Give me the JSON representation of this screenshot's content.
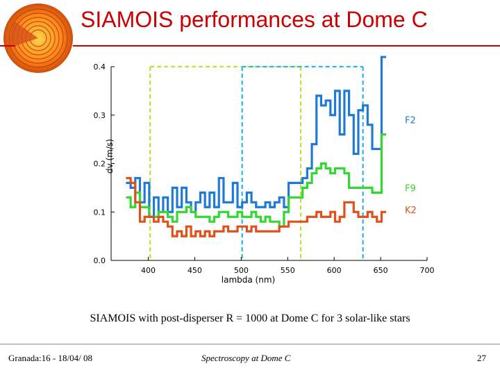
{
  "slide": {
    "title": "SIAMOIS performances at Dome C",
    "caption": "SIAMOIS with post-disperser R = 1000 at Dome C for 3 solar-like stars",
    "footer_left": "Granada:16 - 18/04/ 08",
    "footer_center": "Spectroscopy at Dome C",
    "page_number": "27",
    "logo_icon": "sun-interior-icon"
  },
  "chart_data": {
    "type": "line",
    "xlabel": "lambda (nm)",
    "ylabel": "dv (m/s)",
    "xlim": [
      360,
      700
    ],
    "ylim": [
      0.0,
      0.4
    ],
    "xticks": [
      "400",
      "450",
      "500",
      "550",
      "600",
      "650",
      "700"
    ],
    "yticks": [
      "0.0",
      "0.1",
      "0.2",
      "0.3",
      "0.4"
    ],
    "step": true,
    "series": [
      {
        "name": "F2",
        "color": "#1f7ad6",
        "x": [
          376,
          381,
          386,
          391,
          396,
          401,
          406,
          411,
          416,
          421,
          426,
          431,
          436,
          441,
          446,
          451,
          456,
          461,
          466,
          471,
          476,
          481,
          486,
          491,
          496,
          501,
          506,
          511,
          516,
          521,
          526,
          531,
          536,
          541,
          546,
          551,
          556,
          561,
          566,
          571,
          576,
          581,
          586,
          591,
          596,
          601,
          606,
          611,
          616,
          621,
          626,
          631,
          636,
          641,
          646,
          651,
          656
        ],
        "values": [
          0.16,
          0.15,
          0.17,
          0.12,
          0.16,
          0.09,
          0.13,
          0.1,
          0.13,
          0.1,
          0.15,
          0.11,
          0.15,
          0.12,
          0.1,
          0.12,
          0.14,
          0.11,
          0.14,
          0.11,
          0.17,
          0.12,
          0.12,
          0.16,
          0.11,
          0.12,
          0.14,
          0.12,
          0.11,
          0.11,
          0.12,
          0.11,
          0.12,
          0.13,
          0.11,
          0.16,
          0.16,
          0.16,
          0.17,
          0.19,
          0.24,
          0.34,
          0.32,
          0.33,
          0.3,
          0.35,
          0.26,
          0.35,
          0.3,
          0.22,
          0.31,
          0.32,
          0.28,
          0.23,
          0.23,
          0.42,
          0.42
        ]
      },
      {
        "name": "F9",
        "color": "#33d633",
        "x": [
          376,
          381,
          386,
          391,
          396,
          401,
          406,
          411,
          416,
          421,
          426,
          431,
          436,
          441,
          446,
          451,
          456,
          461,
          466,
          471,
          476,
          481,
          486,
          491,
          496,
          501,
          506,
          511,
          516,
          521,
          526,
          531,
          536,
          541,
          546,
          551,
          556,
          561,
          566,
          571,
          576,
          581,
          586,
          591,
          596,
          601,
          606,
          611,
          616,
          621,
          626,
          631,
          636,
          641,
          646,
          651,
          656
        ],
        "values": [
          0.13,
          0.11,
          0.14,
          0.11,
          0.11,
          0.09,
          0.09,
          0.1,
          0.1,
          0.09,
          0.08,
          0.1,
          0.1,
          0.11,
          0.1,
          0.09,
          0.09,
          0.09,
          0.08,
          0.09,
          0.1,
          0.1,
          0.09,
          0.09,
          0.1,
          0.09,
          0.09,
          0.1,
          0.09,
          0.08,
          0.09,
          0.08,
          0.08,
          0.07,
          0.1,
          0.13,
          0.13,
          0.13,
          0.15,
          0.16,
          0.18,
          0.19,
          0.2,
          0.19,
          0.18,
          0.19,
          0.19,
          0.18,
          0.15,
          0.15,
          0.15,
          0.15,
          0.15,
          0.14,
          0.14,
          0.26,
          0.26
        ]
      },
      {
        "name": "K2",
        "color": "#e0501a",
        "x": [
          376,
          381,
          386,
          391,
          396,
          401,
          406,
          411,
          416,
          421,
          426,
          431,
          436,
          441,
          446,
          451,
          456,
          461,
          466,
          471,
          476,
          481,
          486,
          491,
          496,
          501,
          506,
          511,
          516,
          521,
          526,
          531,
          536,
          541,
          546,
          551,
          556,
          561,
          566,
          571,
          576,
          581,
          586,
          591,
          596,
          601,
          606,
          611,
          616,
          621,
          626,
          631,
          636,
          641,
          646,
          651,
          656
        ],
        "values": [
          0.17,
          0.16,
          0.12,
          0.08,
          0.09,
          0.09,
          0.08,
          0.09,
          0.08,
          0.07,
          0.05,
          0.06,
          0.05,
          0.07,
          0.05,
          0.06,
          0.05,
          0.06,
          0.05,
          0.06,
          0.06,
          0.07,
          0.06,
          0.06,
          0.07,
          0.07,
          0.06,
          0.07,
          0.06,
          0.06,
          0.06,
          0.06,
          0.06,
          0.07,
          0.07,
          0.08,
          0.08,
          0.08,
          0.08,
          0.09,
          0.09,
          0.1,
          0.09,
          0.09,
          0.1,
          0.08,
          0.09,
          0.12,
          0.12,
          0.1,
          0.09,
          0.09,
          0.1,
          0.09,
          0.08,
          0.1,
          0.1
        ]
      }
    ],
    "series_labels": [
      "F2",
      "F9",
      "K2"
    ],
    "vlines": [
      {
        "x": 402,
        "color": "#b7e23a",
        "style": "dashed"
      },
      {
        "x": 564,
        "color": "#b7e23a",
        "style": "dashed"
      },
      {
        "x": 501,
        "color": "#2bb5e6",
        "style": "dashed"
      },
      {
        "x": 631,
        "color": "#2bb5e6",
        "style": "dashed"
      }
    ],
    "hlines": [
      {
        "y": 0.4,
        "color": "#b7e23a",
        "xrange": [
          402,
          564
        ]
      },
      {
        "y": 0.4,
        "color": "#2bb5e6",
        "xrange": [
          501,
          631
        ]
      }
    ],
    "grid": false,
    "legend": "inline-right"
  }
}
